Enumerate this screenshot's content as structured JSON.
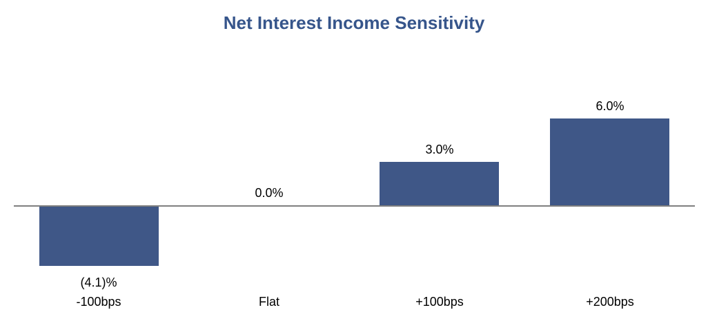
{
  "title": "Net Interest Income Sensitivity",
  "colors": {
    "bar": "#3F5787",
    "title": "#36558B",
    "axis": "#7F7F7F",
    "label": "#000000",
    "background": "#FFFFFF"
  },
  "chart_data": {
    "type": "bar",
    "title": "Net Interest Income Sensitivity",
    "categories": [
      "-100bps",
      "Flat",
      "+100bps",
      "+200bps"
    ],
    "values": [
      -4.1,
      0.0,
      3.0,
      6.0
    ],
    "value_labels": [
      "(4.1)%",
      "0.0%",
      "3.0%",
      "6.0%"
    ],
    "xlabel": "",
    "ylabel": "",
    "ylim": [
      -5,
      7
    ],
    "grid": false,
    "legend": "none",
    "baseline": 0
  }
}
